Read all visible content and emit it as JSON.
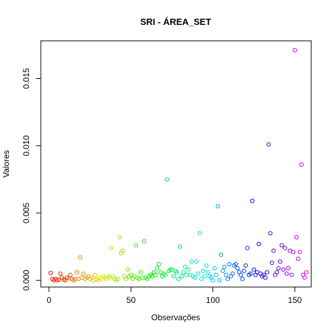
{
  "chart_data": {
    "type": "scatter",
    "title": "SRI - ÁREA_SET",
    "xlabel": "Observações",
    "ylabel": "Valores",
    "xlim": [
      -5,
      160
    ],
    "ylim": [
      -0.0005,
      0.0178
    ],
    "x_ticks": [
      0,
      50,
      100,
      150
    ],
    "y_ticks": [
      0.0,
      0.005,
      0.01,
      0.015
    ],
    "x_tick_labels": [
      "0",
      "50",
      "100",
      "150"
    ],
    "y_tick_labels": [
      "0.000",
      "0.005",
      "0.010",
      "0.015"
    ],
    "grid": false,
    "color_scheme": "rainbow",
    "y": [
      0.00055,
      0.0001,
      0.0,
      0.0001,
      0.0,
      5e-05,
      0.0005,
      0.0002,
      5e-05,
      0.0,
      0.0002,
      0.00015,
      0.0004,
      0.0001,
      0.0,
      0.0001,
      0.0006,
      0.0001,
      0.0017,
      0.0002,
      0.0005,
      0.0001,
      0.0002,
      0.0003,
      0.0001,
      0.0002,
      0.0,
      0.0004,
      0.0001,
      0.0,
      0.0002,
      0.0001,
      0.0003,
      0.0002,
      0.0001,
      0.0003,
      0.0002,
      0.0024,
      0.0003,
      0.0001,
      0.0,
      0.0001,
      0.0032,
      0.002,
      0.0022,
      0.0003,
      0.0001,
      0.0008,
      0.0003,
      0.0004,
      0.0001,
      0.0003,
      0.0026,
      0.0002,
      0.0001,
      0.0006,
      0.0002,
      0.0029,
      0.0002,
      0.0001,
      0.0003,
      0.0004,
      0.0003,
      0.0006,
      0.0004,
      0.0009,
      0.0012,
      0.0006,
      0.0003,
      0.0005,
      0.0004,
      0.0075,
      0.0007,
      0.0008,
      0.0008,
      0.0003,
      0.0007,
      0.0006,
      0.0001,
      0.0025,
      0.0003,
      0.0006,
      0.001,
      0.0004,
      0.0008,
      0.0004,
      0.0014,
      0.0003,
      0.0002,
      0.0014,
      0.0005,
      0.0035,
      0.0001,
      0.0007,
      0.0003,
      0.0011,
      0.0006,
      0.0003,
      0.0002,
      0.0,
      0.0009,
      0.0004,
      0.0055,
      0.0,
      0.0019,
      0.0007,
      0.001,
      0.0004,
      0.0001,
      0.0012,
      0.0003,
      0.0005,
      0.0011,
      0.0012,
      0.0009,
      0.0006,
      0.0004,
      0.0001,
      0.0007,
      0.0011,
      0.0024,
      0.0004,
      0.0005,
      0.0059,
      0.0008,
      0.0004,
      0.0006,
      0.0027,
      0.0005,
      0.0003,
      0.0004,
      0.0002,
      0.0006,
      0.0101,
      0.0035,
      0.0013,
      0.0022,
      0.0004,
      0.0006,
      0.0009,
      0.0014,
      0.0026,
      0.0008,
      0.0024,
      0.0005,
      0.0009,
      0.0022,
      0.0004,
      0.0021,
      0.0171,
      0.0032,
      0.0016,
      0.0021,
      0.0086,
      0.0004,
      0.0002,
      0.0006
    ]
  }
}
